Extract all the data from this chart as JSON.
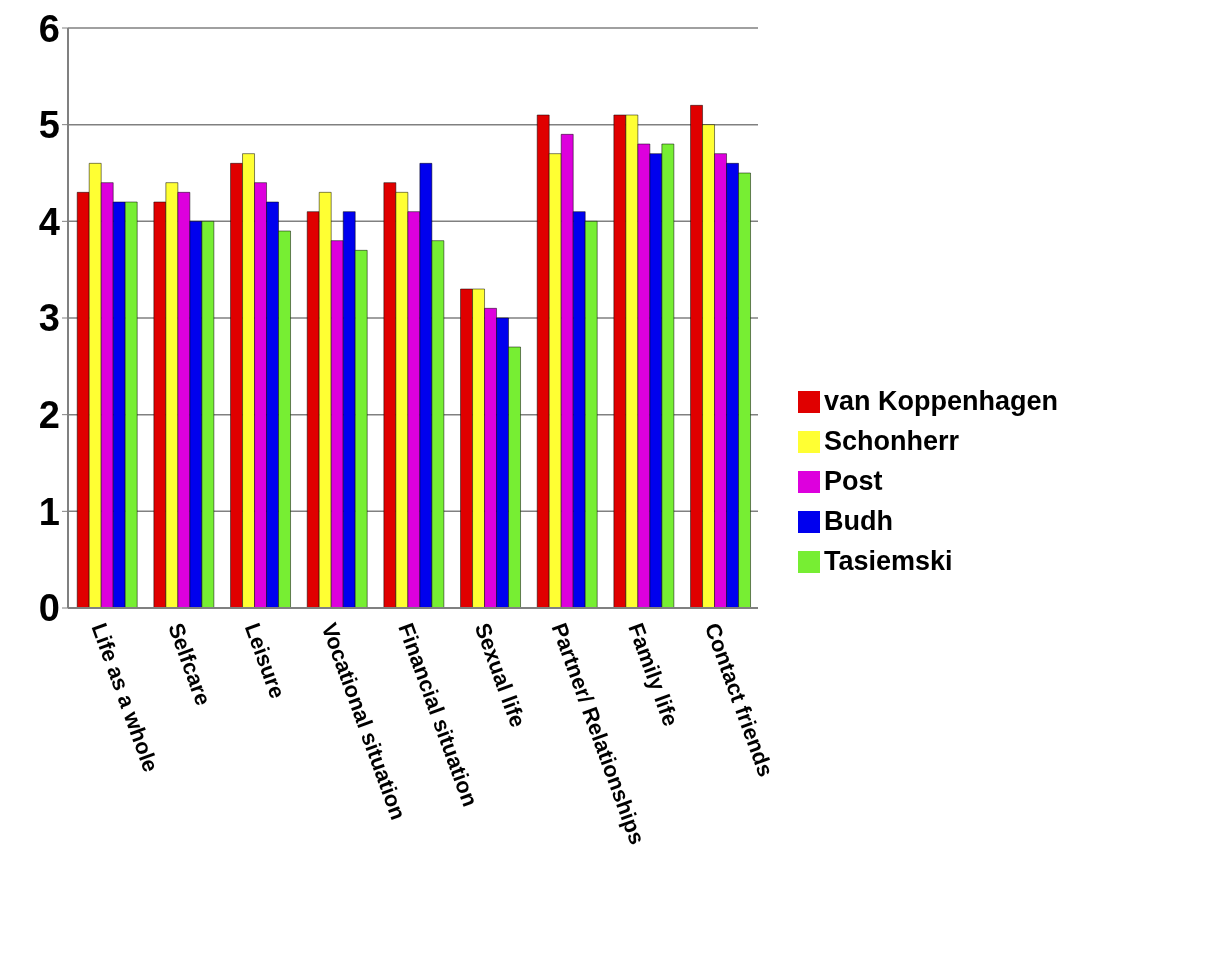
{
  "chart_data": {
    "type": "bar",
    "categories": [
      "Life as a whole",
      "Selfcare",
      "Leisure",
      "Vocational situation",
      "Financial situation",
      "Sexual life",
      "Partner/ Relationships",
      "Family life",
      "Contact friends"
    ],
    "series": [
      {
        "name": "van Koppenhagen",
        "color": "#e00000",
        "values": [
          4.3,
          4.2,
          4.6,
          4.1,
          4.4,
          3.3,
          5.1,
          5.1,
          5.2
        ]
      },
      {
        "name": "Schonherr",
        "color": "#ffff33",
        "values": [
          4.6,
          4.4,
          4.7,
          4.3,
          4.3,
          3.3,
          4.7,
          5.1,
          5.0
        ]
      },
      {
        "name": "Post",
        "color": "#dd00dd",
        "values": [
          4.4,
          4.3,
          4.4,
          3.8,
          4.1,
          3.1,
          4.9,
          4.8,
          4.7
        ]
      },
      {
        "name": "Budh",
        "color": "#0000ee",
        "values": [
          4.2,
          4.0,
          4.2,
          4.1,
          4.6,
          3.0,
          4.1,
          4.7,
          4.6
        ]
      },
      {
        "name": "Tasiemski",
        "color": "#77ee33",
        "values": [
          4.2,
          4.0,
          3.9,
          3.7,
          3.8,
          2.7,
          4.0,
          4.8,
          4.5
        ]
      }
    ],
    "ylim": [
      0,
      6
    ],
    "yticks": [
      0,
      1,
      2,
      3,
      4,
      5,
      6
    ],
    "grid": "y",
    "legend": "right"
  }
}
